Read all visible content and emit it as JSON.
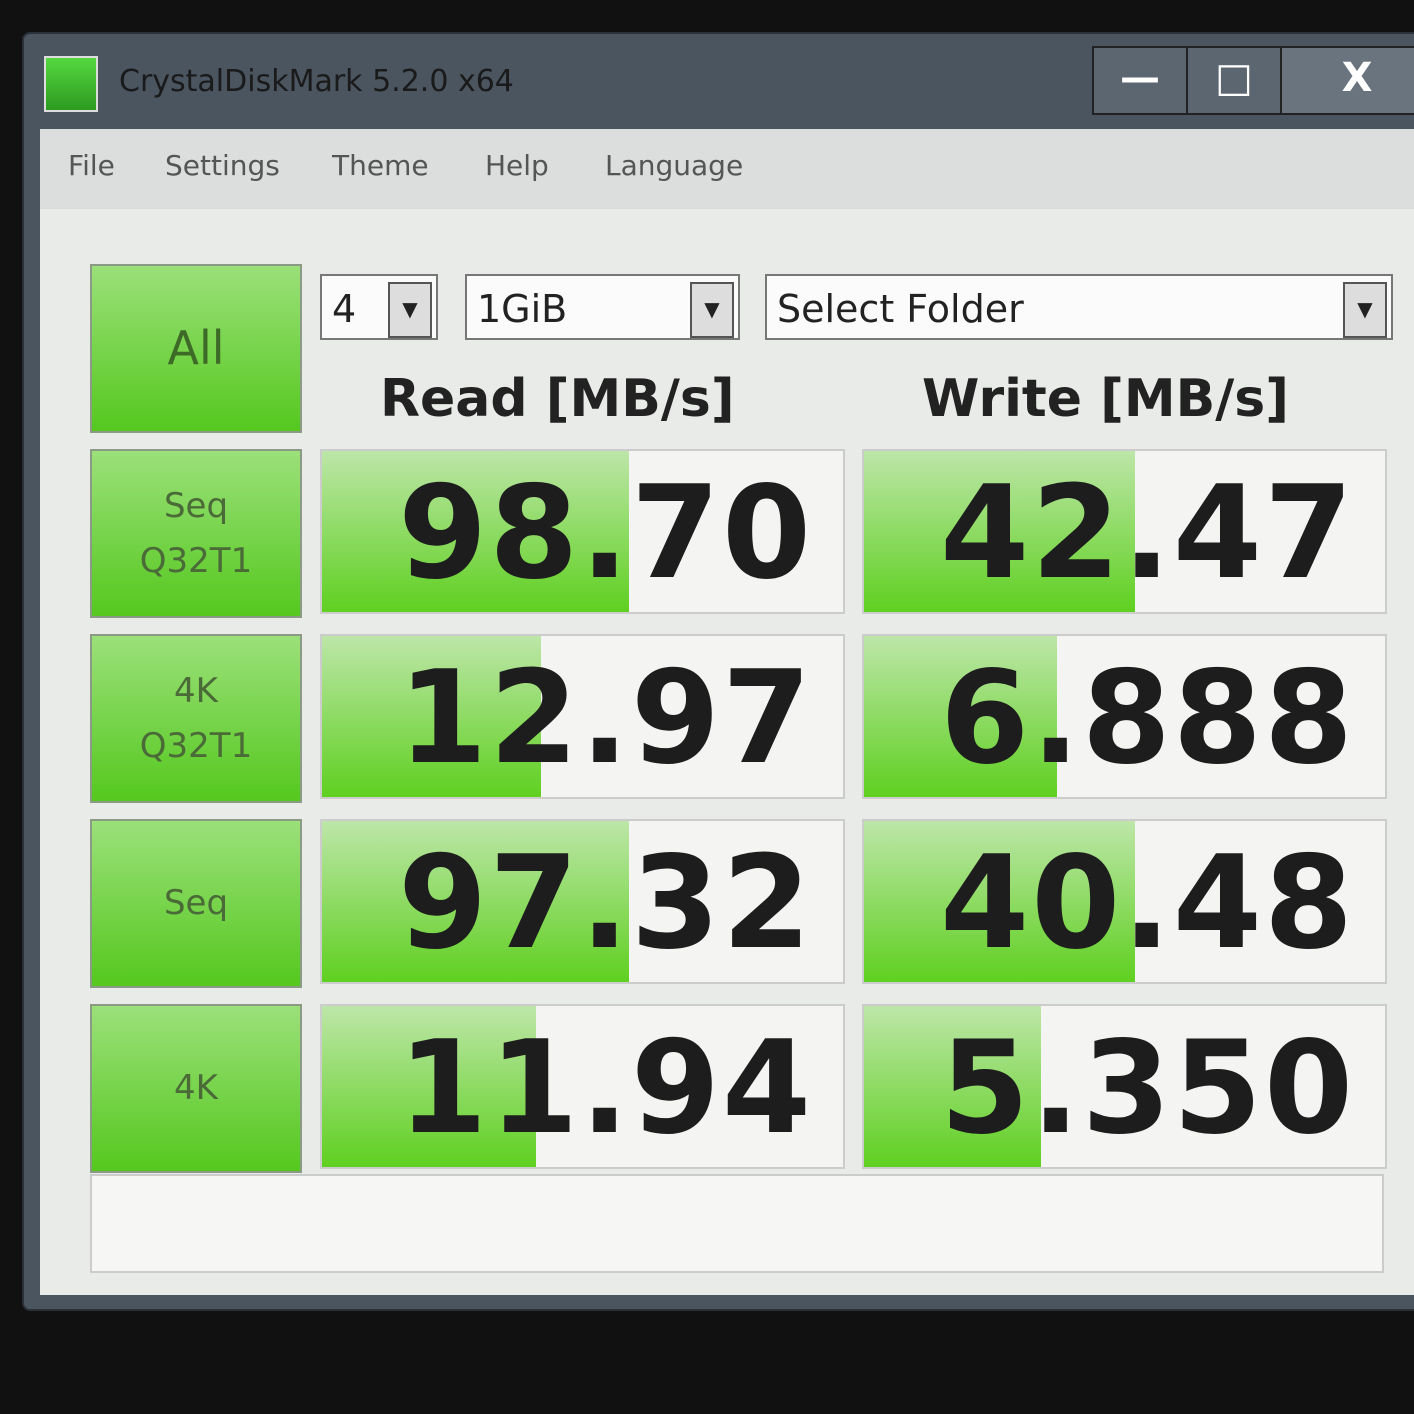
{
  "window": {
    "title": "CrystalDiskMark 5.2.0 x64",
    "icons": {
      "app": "crystaldiskmark-icon",
      "minimize": "minimize-icon",
      "maximize": "maximize-icon",
      "close": "close-icon"
    }
  },
  "menu": [
    "File",
    "Settings",
    "Theme",
    "Help",
    "Language"
  ],
  "controls": {
    "count": "4",
    "size": "1GiB",
    "folder": "Select Folder",
    "all_button": "All"
  },
  "headers": {
    "read": "Read [MB/s]",
    "write": "Write [MB/s]"
  },
  "accent": "#5fd020",
  "rows": [
    {
      "label": "Seq\nQ32T1",
      "read": "98.70",
      "write": "42.47",
      "read_fill": 0.59,
      "write_fill": 0.52
    },
    {
      "label": "4K\nQ32T1",
      "read": "12.97",
      "write": "6.888",
      "read_fill": 0.42,
      "write_fill": 0.37
    },
    {
      "label": "Seq",
      "read": "97.32",
      "write": "40.48",
      "read_fill": 0.59,
      "write_fill": 0.52
    },
    {
      "label": "4K",
      "read": "11.94",
      "write": "5.350",
      "read_fill": 0.41,
      "write_fill": 0.34
    }
  ]
}
